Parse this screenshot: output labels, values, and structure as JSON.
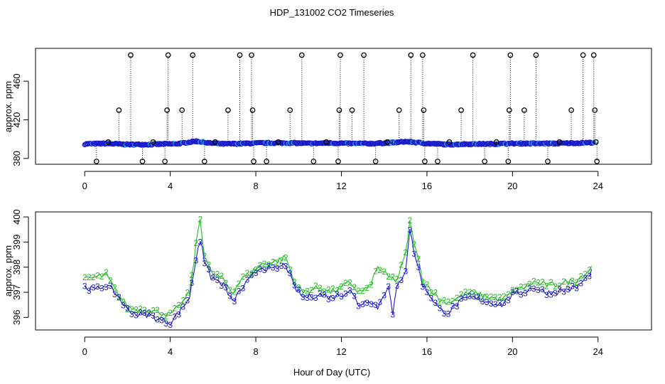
{
  "title": "HDP_131002  CO2 Timeseries",
  "xlabel": "Hour of Day (UTC)",
  "chart_data": [
    {
      "type": "scatter",
      "ylabel": "approx. ppm",
      "xlim": [
        -2.3,
        26.5
      ],
      "ylim": [
        374,
        494
      ],
      "xticks": [
        0,
        4,
        8,
        12,
        16,
        20,
        24
      ],
      "yticks": [
        380,
        420,
        460
      ],
      "xtick_labels": [
        "0",
        "4",
        "8",
        "12",
        "16",
        "20",
        "24"
      ],
      "ytick_labels": [
        "380",
        "420",
        "460"
      ],
      "baseline": [
        [
          0,
          395
        ],
        [
          1,
          395.5
        ],
        [
          2,
          394.5
        ],
        [
          3,
          394.5
        ],
        [
          3.8,
          395
        ],
        [
          4.2,
          395
        ],
        [
          4.8,
          396.5
        ],
        [
          5.2,
          398
        ],
        [
          5.8,
          396
        ],
        [
          6.5,
          395
        ],
        [
          7.5,
          395.5
        ],
        [
          8.2,
          396
        ],
        [
          9,
          396
        ],
        [
          9.8,
          396
        ],
        [
          10.5,
          395.5
        ],
        [
          11.5,
          396
        ],
        [
          12.5,
          395.5
        ],
        [
          13.5,
          395.5
        ],
        [
          14.5,
          396.5
        ],
        [
          15,
          397.5
        ],
        [
          15.3,
          397
        ],
        [
          16,
          395.5
        ],
        [
          17,
          394.5
        ],
        [
          18,
          395
        ],
        [
          19,
          395
        ],
        [
          20,
          395.5
        ],
        [
          21,
          395.5
        ],
        [
          22,
          395.5
        ],
        [
          23,
          396
        ],
        [
          23.8,
          396.5
        ]
      ],
      "outliers": [
        {
          "x": 0.55,
          "y": 377
        },
        {
          "x": 1.1,
          "y": 397
        },
        {
          "x": 1.6,
          "y": 430
        },
        {
          "x": 2.15,
          "y": 487
        },
        {
          "x": 2.7,
          "y": 377
        },
        {
          "x": 3.2,
          "y": 397
        },
        {
          "x": 3.75,
          "y": 377
        },
        {
          "x": 3.85,
          "y": 430
        },
        {
          "x": 3.9,
          "y": 487
        },
        {
          "x": 4.55,
          "y": 430
        },
        {
          "x": 5.05,
          "y": 487
        },
        {
          "x": 5.6,
          "y": 377
        },
        {
          "x": 6.1,
          "y": 397
        },
        {
          "x": 6.7,
          "y": 430
        },
        {
          "x": 7.25,
          "y": 487
        },
        {
          "x": 7.8,
          "y": 487
        },
        {
          "x": 7.85,
          "y": 430
        },
        {
          "x": 7.9,
          "y": 377
        },
        {
          "x": 8.5,
          "y": 377
        },
        {
          "x": 9.05,
          "y": 397
        },
        {
          "x": 9.6,
          "y": 430
        },
        {
          "x": 10.15,
          "y": 487
        },
        {
          "x": 10.7,
          "y": 377
        },
        {
          "x": 11.3,
          "y": 397
        },
        {
          "x": 11.85,
          "y": 377
        },
        {
          "x": 11.9,
          "y": 430
        },
        {
          "x": 11.95,
          "y": 487
        },
        {
          "x": 12.5,
          "y": 430
        },
        {
          "x": 13.05,
          "y": 487
        },
        {
          "x": 13.6,
          "y": 377
        },
        {
          "x": 14.15,
          "y": 397
        },
        {
          "x": 14.7,
          "y": 430
        },
        {
          "x": 15.25,
          "y": 487
        },
        {
          "x": 15.8,
          "y": 487
        },
        {
          "x": 15.85,
          "y": 430
        },
        {
          "x": 15.9,
          "y": 377
        },
        {
          "x": 16.5,
          "y": 377
        },
        {
          "x": 17.05,
          "y": 397
        },
        {
          "x": 17.6,
          "y": 430
        },
        {
          "x": 18.15,
          "y": 487
        },
        {
          "x": 18.7,
          "y": 377
        },
        {
          "x": 19.25,
          "y": 397
        },
        {
          "x": 19.8,
          "y": 377
        },
        {
          "x": 19.85,
          "y": 430
        },
        {
          "x": 19.9,
          "y": 487
        },
        {
          "x": 20.55,
          "y": 430
        },
        {
          "x": 21.1,
          "y": 487
        },
        {
          "x": 21.65,
          "y": 377
        },
        {
          "x": 22.2,
          "y": 397
        },
        {
          "x": 22.75,
          "y": 430
        },
        {
          "x": 23.3,
          "y": 487
        },
        {
          "x": 23.8,
          "y": 487
        },
        {
          "x": 23.85,
          "y": 430
        },
        {
          "x": 23.9,
          "y": 397
        },
        {
          "x": 23.95,
          "y": 377
        }
      ]
    },
    {
      "type": "line",
      "ylabel": "approx. ppm",
      "xlim": [
        -2.3,
        26.5
      ],
      "ylim": [
        395.5,
        400.2
      ],
      "xticks": [
        0,
        4,
        8,
        12,
        16,
        20,
        24
      ],
      "yticks": [
        396,
        397,
        398,
        399,
        400
      ],
      "xtick_labels": [
        "0",
        "4",
        "8",
        "12",
        "16",
        "20",
        "24"
      ],
      "ytick_labels": [
        "396",
        "397",
        "398",
        "399",
        "400"
      ],
      "series": [
        {
          "name": "2",
          "marker": "2",
          "color": "#22bb22",
          "anchors": [
            [
              0,
              397.5
            ],
            [
              0.5,
              397.6
            ],
            [
              1,
              397.7
            ],
            [
              1.5,
              397
            ],
            [
              2,
              396.4
            ],
            [
              2.5,
              396.3
            ],
            [
              3,
              396.3
            ],
            [
              3.5,
              396.2
            ],
            [
              4,
              396.1
            ],
            [
              4.5,
              396.5
            ],
            [
              4.9,
              397
            ],
            [
              5.1,
              398.2
            ],
            [
              5.3,
              399.5
            ],
            [
              5.4,
              399.9
            ],
            [
              5.6,
              398.5
            ],
            [
              5.9,
              397.8
            ],
            [
              6.5,
              397.5
            ],
            [
              6.9,
              397
            ],
            [
              7.3,
              397.5
            ],
            [
              7.8,
              397.8
            ],
            [
              8.2,
              398.1
            ],
            [
              8.8,
              398.2
            ],
            [
              9.4,
              398.4
            ],
            [
              9.8,
              397.4
            ],
            [
              10.2,
              397
            ],
            [
              11,
              397.2
            ],
            [
              11.5,
              397
            ],
            [
              12,
              397.2
            ],
            [
              12.4,
              397.4
            ],
            [
              12.8,
              397
            ],
            [
              13.3,
              397.2
            ],
            [
              13.7,
              398
            ],
            [
              14.2,
              397.6
            ],
            [
              14.6,
              397.5
            ],
            [
              15,
              398.5
            ],
            [
              15.2,
              399.8
            ],
            [
              15.4,
              399
            ],
            [
              15.8,
              397.5
            ],
            [
              16.2,
              397.1
            ],
            [
              16.6,
              396.7
            ],
            [
              17,
              396.6
            ],
            [
              17.5,
              396.8
            ],
            [
              18,
              397
            ],
            [
              18.5,
              396.9
            ],
            [
              19,
              396.8
            ],
            [
              19.5,
              396.7
            ],
            [
              20,
              397
            ],
            [
              20.5,
              397.2
            ],
            [
              21,
              397.4
            ],
            [
              21.5,
              397.3
            ],
            [
              22,
              397.3
            ],
            [
              22.5,
              397.4
            ],
            [
              23,
              397.5
            ],
            [
              23.5,
              397.8
            ],
            [
              23.8,
              398.2
            ]
          ]
        },
        {
          "name": "3",
          "marker": "3",
          "color": "#1a1acc",
          "anchors": [
            [
              0,
              397.2
            ],
            [
              0.5,
              397.1
            ],
            [
              1,
              397.3
            ],
            [
              1.5,
              396.9
            ],
            [
              2,
              396.3
            ],
            [
              2.5,
              396.1
            ],
            [
              3,
              396.1
            ],
            [
              3.5,
              395.9
            ],
            [
              4,
              395.8
            ],
            [
              4.5,
              396.3
            ],
            [
              4.9,
              396.8
            ],
            [
              5.1,
              397.8
            ],
            [
              5.3,
              398.8
            ],
            [
              5.45,
              399.2
            ],
            [
              5.6,
              398.2
            ],
            [
              5.9,
              397.6
            ],
            [
              6.5,
              397.3
            ],
            [
              6.9,
              396.6
            ],
            [
              7.3,
              397.1
            ],
            [
              7.8,
              397.6
            ],
            [
              8.2,
              398
            ],
            [
              8.8,
              397.9
            ],
            [
              9.4,
              398.1
            ],
            [
              9.8,
              397.2
            ],
            [
              10.2,
              396.8
            ],
            [
              11,
              396.9
            ],
            [
              11.5,
              396.8
            ],
            [
              12,
              396.9
            ],
            [
              12.4,
              397.1
            ],
            [
              12.8,
              396.5
            ],
            [
              13.3,
              396.7
            ],
            [
              13.7,
              396.4
            ],
            [
              14.2,
              397.3
            ],
            [
              14.4,
              396.1
            ],
            [
              14.6,
              397.2
            ],
            [
              15,
              397.9
            ],
            [
              15.2,
              399.5
            ],
            [
              15.4,
              398.6
            ],
            [
              15.8,
              397.3
            ],
            [
              16.2,
              396.8
            ],
            [
              16.6,
              396.3
            ],
            [
              17,
              396.2
            ],
            [
              17.5,
              396.6
            ],
            [
              18,
              396.8
            ],
            [
              18.5,
              396.7
            ],
            [
              19,
              396.6
            ],
            [
              19.5,
              396.5
            ],
            [
              20,
              396.9
            ],
            [
              20.5,
              397
            ],
            [
              21,
              397.2
            ],
            [
              21.5,
              397
            ],
            [
              22,
              397
            ],
            [
              22.5,
              397.1
            ],
            [
              23,
              397.2
            ],
            [
              23.5,
              397.6
            ],
            [
              23.8,
              398
            ]
          ]
        }
      ]
    }
  ]
}
